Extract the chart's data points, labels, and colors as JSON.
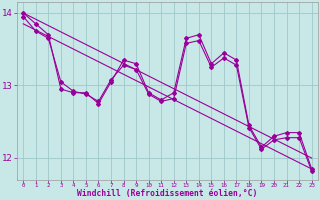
{
  "xlabel": "Windchill (Refroidissement éolien,°C)",
  "x_values": [
    0,
    1,
    2,
    3,
    4,
    5,
    6,
    7,
    8,
    9,
    10,
    11,
    12,
    13,
    14,
    15,
    16,
    17,
    18,
    19,
    20,
    21,
    22,
    23
  ],
  "series1": [
    14.0,
    13.85,
    13.7,
    12.95,
    12.9,
    12.9,
    12.75,
    13.05,
    13.35,
    13.3,
    12.9,
    12.8,
    12.9,
    13.65,
    13.7,
    13.3,
    13.45,
    13.35,
    12.45,
    12.15,
    12.3,
    12.35,
    12.35,
    11.85
  ],
  "series2": [
    13.95,
    13.75,
    13.65,
    13.05,
    12.92,
    12.88,
    12.78,
    13.08,
    13.28,
    13.22,
    12.88,
    12.78,
    12.82,
    13.58,
    13.62,
    13.25,
    13.38,
    13.28,
    12.42,
    12.12,
    12.25,
    12.28,
    12.28,
    11.82
  ],
  "trend1": [
    14.0,
    13.913,
    13.826,
    13.739,
    13.652,
    13.565,
    13.478,
    13.391,
    13.304,
    13.217,
    13.13,
    13.043,
    12.956,
    12.869,
    12.782,
    12.695,
    12.608,
    12.521,
    12.434,
    12.347,
    12.26,
    12.173,
    12.086,
    11.999
  ],
  "trend2": [
    13.85,
    13.763,
    13.676,
    13.589,
    13.502,
    13.415,
    13.328,
    13.241,
    13.154,
    13.067,
    12.98,
    12.893,
    12.806,
    12.719,
    12.632,
    12.545,
    12.458,
    12.371,
    12.284,
    12.197,
    12.11,
    12.023,
    11.936,
    11.849
  ],
  "line_color": "#990099",
  "bg_color": "#c8e8e8",
  "grid_color": "#a0c8c8",
  "ylim": [
    11.7,
    14.15
  ],
  "yticks": [
    12,
    13,
    14
  ],
  "xlim": [
    -0.5,
    23.5
  ]
}
